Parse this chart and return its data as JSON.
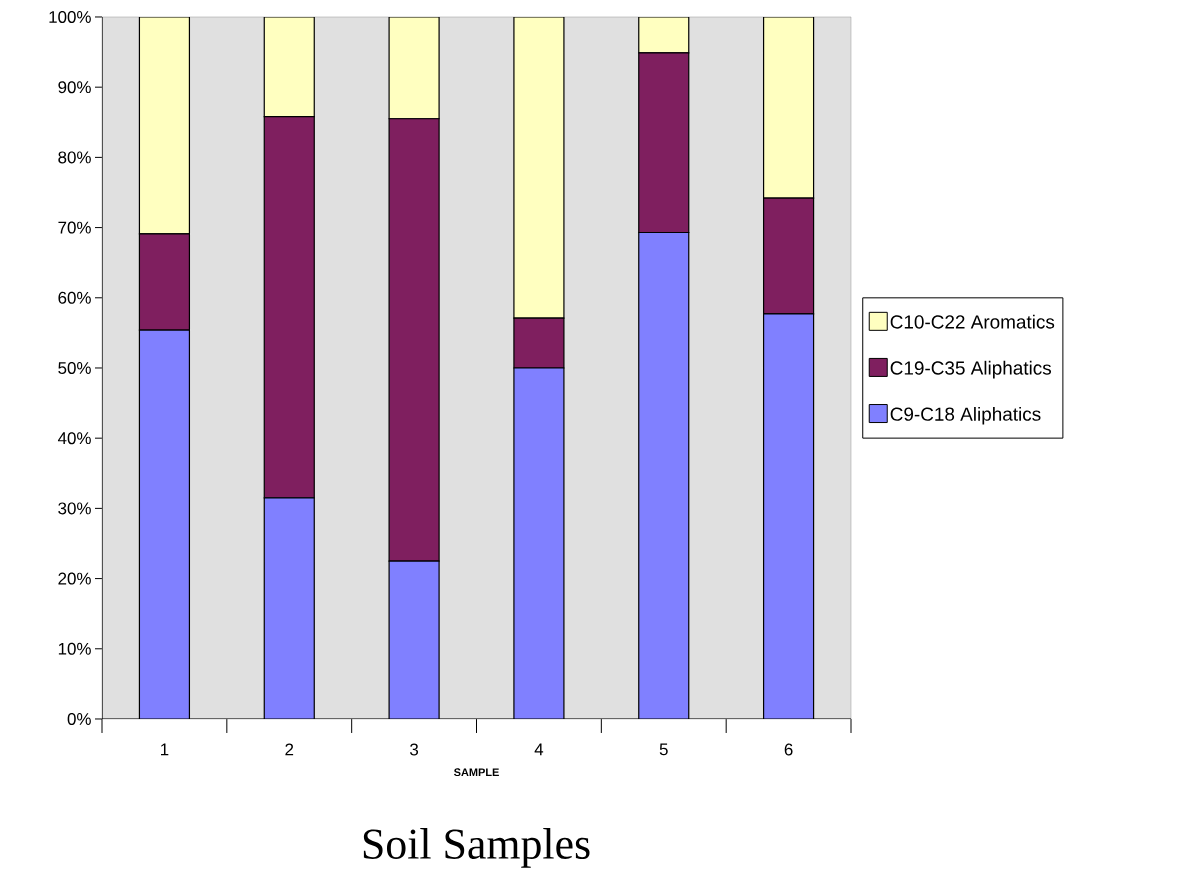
{
  "chart_data": {
    "type": "bar",
    "title": "Soil Samples",
    "xlabel": "SAMPLE",
    "categories": [
      "1",
      "2",
      "3",
      "4",
      "5",
      "6"
    ],
    "stacked": true,
    "series": [
      {
        "name": "C9-C18 Aliphatics",
        "color": "#8080ff",
        "values": [
          55.4,
          31.5,
          22.5,
          50.0,
          69.3,
          57.7
        ]
      },
      {
        "name": "C19-C35 Aliphatics",
        "color": "#7f1f5f",
        "values": [
          13.7,
          54.3,
          63.0,
          7.1,
          25.6,
          16.5
        ]
      },
      {
        "name": "C10-C22 Aromatics",
        "color": "#ffffc0",
        "values": [
          30.9,
          14.2,
          14.5,
          42.9,
          5.1,
          25.8
        ]
      }
    ],
    "ylim": [
      0,
      100
    ],
    "yticks": [
      {
        "value": 0,
        "label": "0%"
      },
      {
        "value": 10,
        "label": "10%"
      },
      {
        "value": 20,
        "label": "20%"
      },
      {
        "value": 30,
        "label": "30%"
      },
      {
        "value": 40,
        "label": "40%"
      },
      {
        "value": 50,
        "label": "50%"
      },
      {
        "value": 60,
        "label": "60%"
      },
      {
        "value": 70,
        "label": "70%"
      },
      {
        "value": 80,
        "label": "80%"
      },
      {
        "value": 90,
        "label": "90%"
      },
      {
        "value": 100,
        "label": "100%"
      }
    ],
    "legend": "right"
  }
}
